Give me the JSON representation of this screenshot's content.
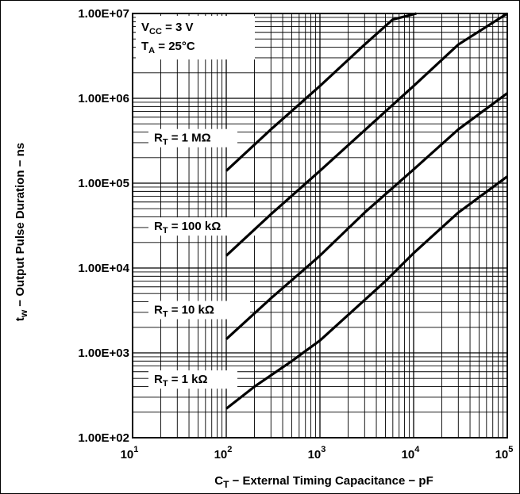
{
  "chart_data": {
    "type": "line",
    "xscale": "log",
    "yscale": "log",
    "xlim": [
      10,
      100000
    ],
    "ylim": [
      100,
      10000000
    ],
    "grid": true,
    "xlabel": {
      "main": "C",
      "sub": "T",
      "rest": " − External Timing Capacitance − pF"
    },
    "ylabel": {
      "main": "t",
      "sub": "w",
      "rest": " − Output Pulse Duration − ns"
    },
    "xticks": [
      {
        "value": 10,
        "base": "10",
        "exp": "1"
      },
      {
        "value": 100,
        "base": "10",
        "exp": "2"
      },
      {
        "value": 1000,
        "base": "10",
        "exp": "3"
      },
      {
        "value": 10000,
        "base": "10",
        "exp": "4"
      },
      {
        "value": 100000,
        "base": "10",
        "exp": "5"
      }
    ],
    "yticks": [
      {
        "value": 100,
        "label": "1.00E+02"
      },
      {
        "value": 1000,
        "label": "1.00E+03"
      },
      {
        "value": 10000,
        "label": "1.00E+04"
      },
      {
        "value": 100000,
        "label": "1.00E+05"
      },
      {
        "value": 1000000,
        "label": "1.00E+06"
      },
      {
        "value": 10000000,
        "label": "1.00E+07"
      }
    ],
    "conditions": [
      {
        "main": "V",
        "sub": "CC",
        "rest": " = 3 V"
      },
      {
        "main": "T",
        "sub": "A",
        "rest": " = 25°C"
      }
    ],
    "series": [
      {
        "label": {
          "main": "R",
          "sub": "T",
          "rest": " = 1 MΩ"
        },
        "label_at": [
          1000,
          2.2
        ],
        "points": [
          [
            100,
            140000
          ],
          [
            300,
            430000
          ],
          [
            1000,
            1400000
          ],
          [
            3000,
            4300000
          ],
          [
            6000,
            8500000
          ],
          [
            10700,
            10000000
          ]
        ]
      },
      {
        "label": {
          "main": "R",
          "sub": "T",
          "rest": " = 100 kΩ"
        },
        "label_at": [
          1300,
          0.2
        ],
        "points": [
          [
            100,
            14000
          ],
          [
            300,
            43000
          ],
          [
            1000,
            140000
          ],
          [
            3000,
            420000
          ],
          [
            10000,
            1400000
          ],
          [
            30000,
            4300000
          ],
          [
            100000,
            10000000
          ]
        ]
      },
      {
        "label": {
          "main": "R",
          "sub": "T",
          "rest": " = 10 kΩ"
        },
        "label_at": [
          1300,
          0.2
        ],
        "points": [
          [
            100,
            1450
          ],
          [
            300,
            4400
          ],
          [
            1000,
            14000
          ],
          [
            3000,
            45000
          ],
          [
            10000,
            145000
          ],
          [
            30000,
            430000
          ],
          [
            100000,
            1150000
          ]
        ]
      },
      {
        "label": {
          "main": "R",
          "sub": "T",
          "rest": " = 1 kΩ"
        },
        "label_at": [
          1300,
          0.2
        ],
        "points": [
          [
            100,
            220
          ],
          [
            200,
            400
          ],
          [
            500,
            800
          ],
          [
            1000,
            1400
          ],
          [
            2000,
            2800
          ],
          [
            5000,
            7000
          ],
          [
            10000,
            15000
          ],
          [
            30000,
            45000
          ],
          [
            100000,
            120000
          ]
        ]
      }
    ]
  }
}
